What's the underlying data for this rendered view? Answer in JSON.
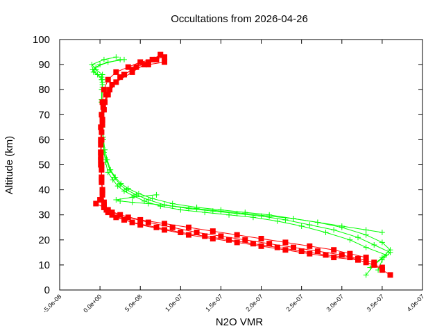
{
  "chart_data": {
    "type": "scatter",
    "title": "Occultations from 2026-04-26",
    "xlabel": "N2O VMR",
    "ylabel": "Altitude (km)",
    "xlim": [
      -5e-08,
      4e-07
    ],
    "ylim": [
      0,
      100
    ],
    "x_ticks": [
      "-5.0e-08",
      "0.0e+00",
      "5.0e-08",
      "1.0e-07",
      "1.5e-07",
      "2.0e-07",
      "2.5e-07",
      "3.0e-07",
      "3.5e-07",
      "4.0e-07"
    ],
    "x_tick_values": [
      -5e-08,
      0,
      5e-08,
      1e-07,
      1.5e-07,
      2e-07,
      2.5e-07,
      3e-07,
      3.5e-07,
      4e-07
    ],
    "y_ticks": [
      "0",
      "10",
      "20",
      "30",
      "40",
      "50",
      "60",
      "70",
      "80",
      "90",
      "100"
    ],
    "y_tick_values": [
      0,
      10,
      20,
      30,
      40,
      50,
      60,
      70,
      80,
      90,
      100
    ],
    "grid": false,
    "legend": "none",
    "series": [
      {
        "color": "#00ff00",
        "marker": "plus",
        "profiles": [
          {
            "x": [
              3.45e-07,
              3.5e-07,
              3.6e-07,
              3.4e-07,
              3.2e-07,
              2.9e-07,
              2.6e-07,
              2.3e-07,
              2e-07,
              1.7e-07,
              1.4e-07,
              1.1e-07,
              8e-08,
              6e-08,
              4.5e-08,
              3.3e-08,
              2.5e-08,
              1.8e-08,
              1.2e-08,
              8e-09,
              5e-09,
              4e-09,
              3e-09,
              2e-09,
              2e-09,
              2e-09,
              3e-09,
              3e-09,
              3e-09,
              -5e-09,
              -1e-08,
              5e-09,
              2e-08
            ],
            "y": [
              8,
              12,
              15,
              18,
              21,
              24,
              26,
              28,
              29.5,
              30.5,
              31.5,
              32.5,
              34,
              36,
              38,
              40,
              42,
              45,
              48,
              52,
              55,
              60,
              65,
              70,
              75,
              80,
              82,
              84,
              86,
              88,
              90,
              92,
              93
            ]
          },
          {
            "x": [
              3.3e-07,
              3.4e-07,
              3.55e-07,
              3.3e-07,
              3.1e-07,
              2.8e-07,
              2.5e-07,
              2.2e-07,
              1.9e-07,
              1.6e-07,
              1.3e-07,
              1e-07,
              7.5e-08,
              5.5e-08,
              4.2e-08,
              3e-08,
              2.2e-08,
              1.6e-08,
              1e-08,
              7e-09,
              5e-09,
              4e-09,
              3e-09,
              2e-09,
              2e-09,
              3e-09,
              3e-09,
              2e-09,
              -8e-09,
              -5e-09,
              1e-08,
              3e-08
            ],
            "y": [
              6,
              10,
              14,
              17,
              20,
              23,
              25.5,
              27.5,
              29,
              30,
              31,
              32,
              33.5,
              35.5,
              37.5,
              39.5,
              41.5,
              44,
              47,
              51,
              55,
              60,
              65,
              70,
              75,
              80,
              83,
              85,
              87,
              89,
              91,
              92
            ]
          },
          {
            "x": [
              3.35e-07,
              3.5e-07,
              3.6e-07,
              3.5e-07,
              3.3e-07,
              3e-07,
              2.7e-07,
              2.4e-07,
              2.1e-07,
              1.8e-07,
              1.5e-07,
              1.2e-07,
              9e-08,
              6.5e-08,
              4.8e-08,
              3.5e-08,
              2.6e-08,
              1.9e-08,
              1.3e-08,
              9e-09,
              6e-09,
              4e-09,
              3e-09,
              3e-09,
              2e-09,
              3e-09,
              2e-09,
              -3e-09,
              -9e-09,
              0,
              2.5e-08
            ],
            "y": [
              9,
              13,
              16,
              19,
              22,
              25,
              27,
              28.5,
              30,
              31,
              32,
              33,
              34.5,
              36.5,
              38.5,
              40.5,
              42.5,
              45,
              48,
              52,
              56,
              61,
              66,
              71,
              76,
              81,
              84,
              86,
              88,
              90,
              92
            ]
          },
          {
            "x": [
              3.5e-07,
              3.3e-07,
              3e-07,
              2.7e-07,
              2.4e-07,
              2.1e-07,
              1.8e-07,
              1.5e-07,
              1.2e-07,
              9e-08,
              6e-08,
              4e-08,
              2.5e-08,
              2e-08,
              4e-08,
              7e-08
            ],
            "y": [
              23,
              24,
              25.5,
              27,
              28.5,
              29.5,
              30.5,
              31.5,
              32.5,
              33.5,
              34.5,
              35,
              35.5,
              36,
              37,
              38
            ]
          }
        ]
      },
      {
        "color": "#ff0000",
        "marker": "filled-square",
        "profiles": [
          {
            "x": [
              3.6e-07,
              3.5e-07,
              3.4e-07,
              3.2e-07,
              2.9e-07,
              2.6e-07,
              2.3e-07,
              2e-07,
              1.7e-07,
              1.4e-07,
              1.1e-07,
              8e-08,
              5e-08,
              3e-08,
              1.5e-08,
              8e-09,
              5e-09,
              3e-09,
              2e-09,
              2e-09,
              1e-09,
              1e-09,
              1e-09,
              2e-09,
              3e-09,
              5e-09,
              1e-08,
              2e-08,
              3.5e-08,
              5e-08,
              6.5e-08,
              8e-08
            ],
            "y": [
              6,
              8,
              10,
              12,
              13,
              14.5,
              16,
              17.5,
              19,
              20.5,
              22,
              24,
              26,
              28,
              30,
              32,
              35,
              40,
              45,
              50,
              55,
              60,
              65,
              70,
              75,
              80,
              84,
              87,
              89,
              91,
              92,
              93
            ]
          },
          {
            "x": [
              3.5e-07,
              3.3e-07,
              3.1e-07,
              2.8e-07,
              2.5e-07,
              2.2e-07,
              1.9e-07,
              1.6e-07,
              1.3e-07,
              1e-07,
              7e-08,
              4e-08,
              2e-08,
              1e-08,
              5e-09,
              3e-09,
              2e-09,
              2e-09,
              1e-09,
              1e-09,
              2e-09,
              3e-09,
              4e-09,
              8e-09,
              1.5e-08,
              3e-08,
              4.5e-08,
              6e-08,
              7.5e-08
            ],
            "y": [
              9,
              11,
              13,
              14,
              15.5,
              17,
              18.5,
              20,
              21.5,
              23,
              25,
              27,
              29,
              31,
              33,
              38,
              43,
              48,
              53,
              58,
              63,
              68,
              73,
              78,
              82,
              86,
              89,
              91,
              94
            ]
          },
          {
            "x": [
              3.4e-07,
              3.2e-07,
              3e-07,
              2.7e-07,
              2.4e-07,
              2.1e-07,
              1.8e-07,
              1.5e-07,
              1.2e-07,
              9e-08,
              6e-08,
              3.5e-08,
              1.5e-08,
              5e-09,
              -5e-09,
              0,
              3e-09,
              2e-09,
              1e-09,
              1e-09,
              2e-09,
              3e-09,
              5e-09,
              1e-08,
              2e-08,
              4e-08,
              5.5e-08,
              7e-08
            ],
            "y": [
              11,
              12.5,
              14,
              15.5,
              17,
              18.5,
              20,
              21.5,
              23,
              25,
              27,
              29,
              31,
              33,
              34.5,
              36,
              40,
              45,
              50,
              55,
              60,
              66,
              72,
              78,
              83,
              87,
              90,
              92
            ]
          },
          {
            "x": [
              3.3e-07,
              3.1e-07,
              2.9e-07,
              2.6e-07,
              2.3e-07,
              2e-07,
              1.7e-07,
              1.4e-07,
              1.1e-07,
              8e-08,
              5e-08,
              2.5e-08,
              1e-08,
              5e-09,
              3e-09,
              2e-09,
              1e-09,
              2e-09,
              3e-09,
              6e-09,
              1.2e-08,
              2.5e-08,
              4e-08,
              6e-08,
              8e-08
            ],
            "y": [
              13,
              14.5,
              16,
              17.5,
              19,
              20.5,
              22,
              23.5,
              25,
              26.5,
              28,
              30,
              32,
              34,
              39,
              44,
              52,
              60,
              68,
              75,
              80,
              85,
              88,
              90,
              91
            ]
          }
        ]
      }
    ]
  }
}
